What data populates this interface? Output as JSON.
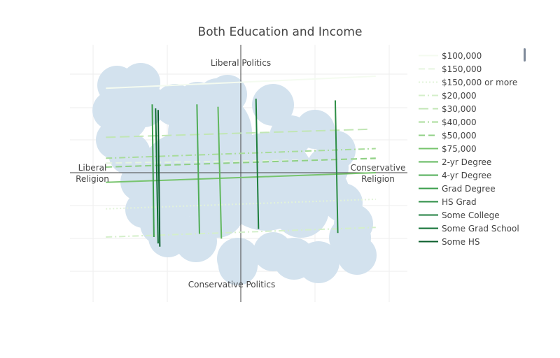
{
  "chart_data": {
    "type": "line",
    "title": "Both Education and Income",
    "axis_labels": {
      "top": "Liberal Politics",
      "bottom": "Conservative Politics",
      "left": "Liberal\nReligion",
      "right": "Conservative\nReligion"
    },
    "xlim": [
      -2.0,
      2.0
    ],
    "ylim": [
      -1.6,
      1.6
    ],
    "grid": true,
    "legend_position": "right",
    "series": [
      {
        "name": "$100,000",
        "color": "#f4fbf0",
        "dash": "solid",
        "x": [
          -1.6,
          1.6
        ],
        "y": [
          1.05,
          1.2
        ]
      },
      {
        "name": "$150,000",
        "color": "#e6f5df",
        "dash": "dash",
        "x": [
          -1.6,
          1.6
        ],
        "y": [
          0.12,
          0.17
        ]
      },
      {
        "name": "$150,000 or more",
        "color": "#e2f3d9",
        "dash": "dot",
        "x": [
          -1.6,
          1.6
        ],
        "y": [
          -0.45,
          -0.33
        ]
      },
      {
        "name": "$20,000",
        "color": "#d4efca",
        "dash": "dashdot",
        "x": [
          -1.6,
          1.6
        ],
        "y": [
          -0.8,
          -0.68
        ]
      },
      {
        "name": "$30,000",
        "color": "#c1e6b4",
        "dash": "longdash",
        "x": [
          -1.6,
          1.5
        ],
        "y": [
          0.44,
          0.54
        ]
      },
      {
        "name": "$40,000",
        "color": "#a8dc9a",
        "dash": "dashdot",
        "x": [
          -1.6,
          1.6
        ],
        "y": [
          0.18,
          0.3
        ]
      },
      {
        "name": "$50,000",
        "color": "#8fd084",
        "dash": "dash",
        "x": [
          -1.6,
          1.6
        ],
        "y": [
          0.07,
          0.18
        ]
      },
      {
        "name": "$75,000",
        "color": "#77c46d",
        "dash": "solid",
        "x": [
          -1.6,
          1.6
        ],
        "y": [
          -0.12,
          0.0
        ]
      },
      {
        "name": "2-yr Degree",
        "color": "#62b85e",
        "dash": "solid",
        "x": [
          -0.27,
          -0.23
        ],
        "y": [
          0.82,
          -0.82
        ]
      },
      {
        "name": "4-yr Degree",
        "color": "#4fad56",
        "dash": "solid",
        "x": [
          -0.52,
          -0.49
        ],
        "y": [
          0.85,
          -0.76
        ]
      },
      {
        "name": "Grad Degree",
        "color": "#3c9e4c",
        "dash": "solid",
        "x": [
          -1.05,
          -1.03
        ],
        "y": [
          0.85,
          -0.8
        ]
      },
      {
        "name": "HS Grad",
        "color": "#2d8e45",
        "dash": "solid",
        "x": [
          1.12,
          1.15
        ],
        "y": [
          0.9,
          -0.75
        ]
      },
      {
        "name": "Some College",
        "color": "#1d7e3c",
        "dash": "solid",
        "x": [
          0.18,
          0.21
        ],
        "y": [
          0.92,
          -0.7
        ]
      },
      {
        "name": "Some Grad School",
        "color": "#117034",
        "dash": "solid",
        "x": [
          -1.01,
          -0.98
        ],
        "y": [
          0.8,
          -0.88
        ]
      },
      {
        "name": "Some HS",
        "color": "#0a5e2b",
        "dash": "solid",
        "x": [
          -0.98,
          -0.96
        ],
        "y": [
          0.78,
          -0.92
        ]
      }
    ]
  }
}
